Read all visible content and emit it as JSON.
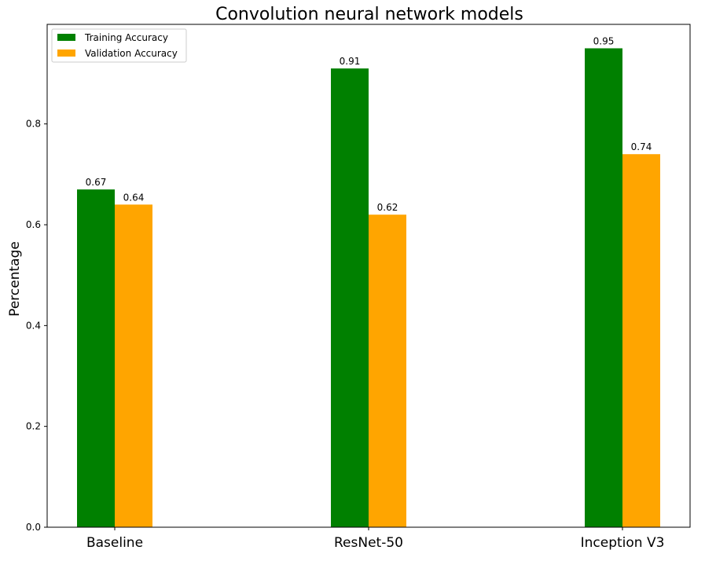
{
  "chart_data": {
    "type": "bar",
    "title": "Convolution neural network models",
    "ylabel": "Percentage",
    "xlabel": "",
    "categories": [
      "Baseline",
      "ResNet-50",
      "Inception V3"
    ],
    "series": [
      {
        "name": "Training Accuracy",
        "values": [
          0.67,
          0.91,
          0.95
        ],
        "color": "#008000"
      },
      {
        "name": "Validation Accuracy",
        "values": [
          0.64,
          0.62,
          0.74
        ],
        "color": "#ffa500"
      }
    ],
    "ylim": [
      0,
      0.9975
    ],
    "yticks": [
      "0.0",
      "0.2",
      "0.4",
      "0.6",
      "0.8"
    ],
    "data_labels": true,
    "grid": false,
    "legend": "top-left"
  }
}
